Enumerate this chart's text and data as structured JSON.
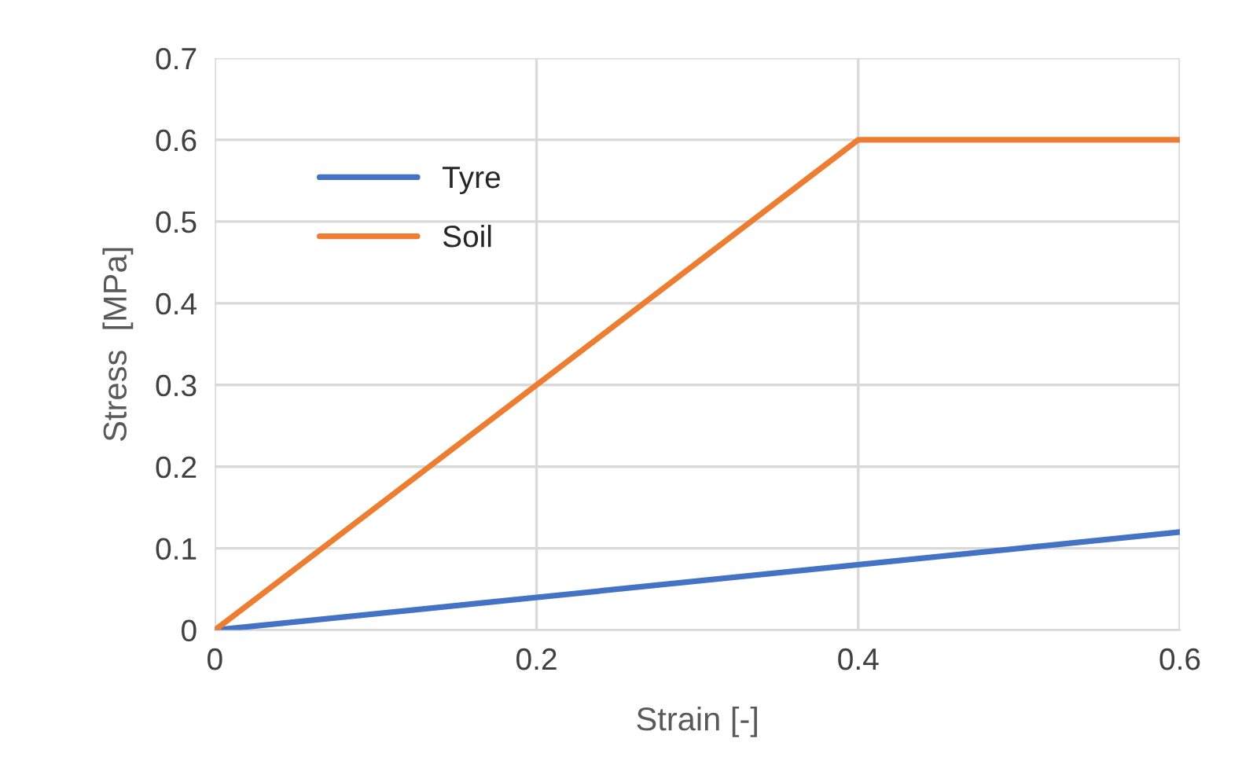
{
  "chart_data": {
    "type": "line",
    "xlabel": "Strain [-]",
    "ylabel": "Stress  [MPa]",
    "series": [
      {
        "name": "Tyre",
        "color": "#4472c4",
        "x": [
          0,
          0.6
        ],
        "values": [
          0,
          0.12
        ]
      },
      {
        "name": "Soil",
        "color": "#ed7d31",
        "x": [
          0,
          0.4,
          0.6
        ],
        "values": [
          0,
          0.6,
          0.6
        ]
      }
    ],
    "xlim": [
      0,
      0.6
    ],
    "xticks": [
      0,
      0.2,
      0.4,
      0.6
    ],
    "ylim": [
      0,
      0.7
    ],
    "yticks": [
      0,
      0.1,
      0.2,
      0.3,
      0.4,
      0.5,
      0.6,
      0.7
    ],
    "grid": true,
    "legend": "top left",
    "line_style": "solid",
    "marker": "none"
  }
}
